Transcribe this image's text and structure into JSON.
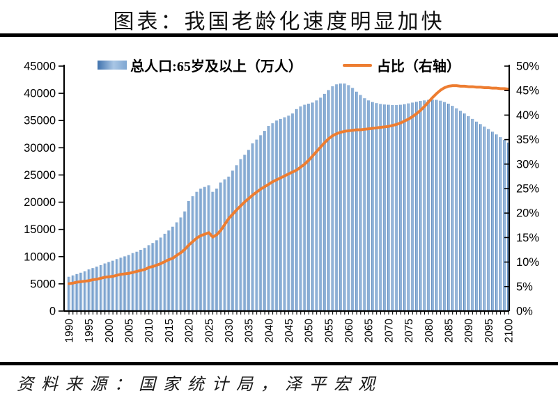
{
  "title": "图表：我国老龄化速度明显加快",
  "source_note": "资料来源：国家统计局，泽平宏观",
  "legend": {
    "bars_label": "总人口:65岁及以上（万人）",
    "line_label": "占比（右轴）"
  },
  "colors": {
    "bar_dark": "#3f72ad",
    "bar_light": "#a9c6e5",
    "bar_mid": "#7fa7d2",
    "line": "#ED7D31",
    "axis": "#000000"
  },
  "axes": {
    "left": {
      "ticks": [
        "45000",
        "40000",
        "35000",
        "30000",
        "25000",
        "20000",
        "15000",
        "10000",
        "5000",
        "0"
      ]
    },
    "right": {
      "ticks": [
        "50%",
        "45%",
        "40%",
        "35%",
        "30%",
        "25%",
        "20%",
        "15%",
        "10%",
        "5%",
        "0%"
      ]
    },
    "x": {
      "tick_labels": [
        "1990",
        "1995",
        "2000",
        "2005",
        "2010",
        "2015",
        "2020",
        "2025",
        "2030",
        "2035",
        "2040",
        "2045",
        "2050",
        "2055",
        "2060",
        "2065",
        "2070",
        "2075",
        "2080",
        "2085",
        "2090",
        "2095",
        "2100"
      ]
    }
  },
  "chart_data": {
    "type": "combo",
    "title": "图表：我国老龄化速度明显加快",
    "x_start": 1990,
    "x_end": 2100,
    "x": [
      1990,
      1991,
      1992,
      1993,
      1994,
      1995,
      1996,
      1997,
      1998,
      1999,
      2000,
      2001,
      2002,
      2003,
      2004,
      2005,
      2006,
      2007,
      2008,
      2009,
      2010,
      2011,
      2012,
      2013,
      2014,
      2015,
      2016,
      2017,
      2018,
      2019,
      2020,
      2021,
      2022,
      2023,
      2024,
      2025,
      2026,
      2027,
      2028,
      2029,
      2030,
      2031,
      2032,
      2033,
      2034,
      2035,
      2036,
      2037,
      2038,
      2039,
      2040,
      2041,
      2042,
      2043,
      2044,
      2045,
      2046,
      2047,
      2048,
      2049,
      2050,
      2051,
      2052,
      2053,
      2054,
      2055,
      2056,
      2057,
      2058,
      2059,
      2060,
      2061,
      2062,
      2063,
      2064,
      2065,
      2066,
      2067,
      2068,
      2069,
      2070,
      2071,
      2072,
      2073,
      2074,
      2075,
      2076,
      2077,
      2078,
      2079,
      2080,
      2081,
      2082,
      2083,
      2084,
      2085,
      2086,
      2087,
      2088,
      2089,
      2090,
      2091,
      2092,
      2093,
      2094,
      2095,
      2096,
      2097,
      2098,
      2099,
      2100
    ],
    "series": [
      {
        "name": "总人口:65岁及以上（万人）",
        "type": "bar",
        "axis": "left",
        "values": [
          6300,
          6550,
          6800,
          7050,
          7300,
          7650,
          7900,
          8150,
          8450,
          8750,
          9000,
          9250,
          9550,
          9800,
          10050,
          10300,
          10650,
          10900,
          11250,
          11600,
          12100,
          12500,
          13000,
          13500,
          14200,
          14800,
          15500,
          16300,
          17200,
          18300,
          20200,
          21100,
          21900,
          22500,
          22800,
          23100,
          21900,
          22500,
          23600,
          24200,
          24700,
          25800,
          26800,
          27900,
          28700,
          29600,
          30800,
          31500,
          32300,
          33100,
          34000,
          34500,
          35000,
          35300,
          35600,
          35900,
          36300,
          37100,
          37600,
          37900,
          38100,
          38300,
          38700,
          39200,
          39900,
          40600,
          41300,
          41650,
          41800,
          41800,
          41500,
          41000,
          40300,
          39700,
          39100,
          38700,
          38400,
          38200,
          38050,
          37950,
          37900,
          37850,
          37850,
          37900,
          38000,
          38150,
          38300,
          38450,
          38600,
          38700,
          38800,
          38850,
          38800,
          38650,
          38400,
          38100,
          37700,
          37250,
          36800,
          36300,
          35800,
          35300,
          34800,
          34350,
          33900,
          33450,
          32950,
          32450,
          31950,
          31450,
          30950
        ]
      },
      {
        "name": "占比（右轴）",
        "type": "line",
        "axis": "right",
        "values": [
          5.6,
          5.7,
          5.9,
          6.0,
          6.1,
          6.2,
          6.4,
          6.5,
          6.7,
          6.9,
          7.0,
          7.1,
          7.3,
          7.5,
          7.6,
          7.7,
          7.9,
          8.1,
          8.3,
          8.5,
          8.9,
          9.1,
          9.4,
          9.7,
          10.1,
          10.5,
          10.8,
          11.4,
          11.9,
          12.6,
          13.5,
          14.2,
          14.9,
          15.4,
          15.7,
          16.0,
          15.1,
          15.6,
          16.5,
          17.7,
          18.9,
          19.8,
          20.7,
          21.5,
          22.3,
          23.0,
          23.7,
          24.3,
          24.9,
          25.4,
          25.9,
          26.4,
          26.8,
          27.2,
          27.6,
          28.0,
          28.4,
          28.8,
          29.4,
          30.0,
          30.8,
          31.7,
          32.6,
          33.5,
          34.4,
          35.2,
          35.8,
          36.2,
          36.5,
          36.7,
          36.8,
          36.9,
          37.0,
          37.0,
          37.1,
          37.2,
          37.3,
          37.4,
          37.5,
          37.6,
          37.7,
          37.9,
          38.1,
          38.4,
          38.8,
          39.2,
          39.7,
          40.3,
          41.0,
          41.8,
          42.7,
          43.6,
          44.4,
          45.1,
          45.6,
          45.9,
          46.0,
          46.0,
          45.9,
          45.9,
          45.8,
          45.8,
          45.7,
          45.7,
          45.6,
          45.6,
          45.5,
          45.5,
          45.4,
          45.4,
          45.3
        ]
      }
    ],
    "left_ylim": [
      0,
      45000
    ],
    "right_ylim": [
      0,
      50
    ],
    "grid": false,
    "legend_position": "top"
  }
}
